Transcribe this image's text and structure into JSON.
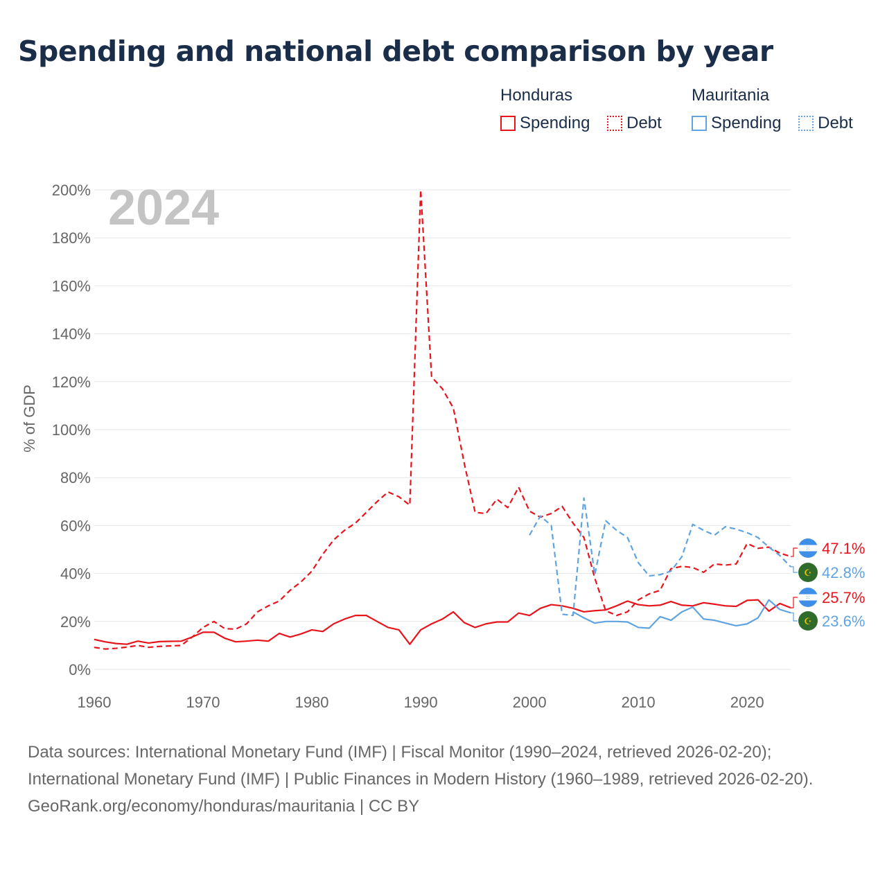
{
  "title": "Spending and national debt comparison by year",
  "legend": {
    "groups": [
      {
        "name": "Honduras",
        "color": "#e8141c",
        "items": [
          {
            "label": "Spending",
            "style": "solid"
          },
          {
            "label": "Debt",
            "style": "dotted"
          }
        ]
      },
      {
        "name": "Mauritania",
        "color": "#5fa3e0",
        "items": [
          {
            "label": "Spending",
            "style": "solid"
          },
          {
            "label": "Debt",
            "style": "dotted"
          }
        ]
      }
    ]
  },
  "chart_data": {
    "type": "line",
    "year_label": "2024",
    "ylabel": "% of GDP",
    "xlabel": "",
    "xlim": [
      1960,
      2024
    ],
    "ylim": [
      0,
      200
    ],
    "x_ticks": [
      1960,
      1970,
      1980,
      1990,
      2000,
      2010,
      2020
    ],
    "y_ticks": [
      0,
      20,
      40,
      60,
      80,
      100,
      120,
      140,
      160,
      180,
      200
    ],
    "y_tick_labels": [
      "0%",
      "20%",
      "40%",
      "60%",
      "80%",
      "100%",
      "120%",
      "140%",
      "160%",
      "180%",
      "200%"
    ],
    "grid": true,
    "series": [
      {
        "name": "Honduras Debt",
        "country": "Honduras",
        "measure": "Debt",
        "color": "#e8141c",
        "dash": "dashed",
        "end_label": "47.1%",
        "start_year": 1960,
        "values": [
          9.2,
          8.5,
          8.8,
          9.3,
          10.0,
          9.2,
          9.6,
          9.8,
          10.0,
          13.5,
          17.5,
          20.0,
          17.0,
          16.8,
          19.0,
          24.0,
          26.5,
          28.5,
          33.0,
          36.5,
          41.0,
          48.0,
          54.0,
          58.0,
          61.0,
          65.5,
          70.0,
          74.0,
          72.0,
          68.5,
          200.0,
          122.0,
          117.0,
          109.0,
          86.0,
          65.5,
          65.0,
          71.0,
          67.5,
          76.0,
          66.0,
          63.5,
          65.0,
          68.0,
          61.0,
          55.0,
          38.0,
          24.5,
          22.5,
          24.0,
          29.0,
          31.5,
          33.0,
          42.0,
          43.0,
          42.5,
          40.5,
          44.0,
          43.5,
          44.0,
          52.5,
          50.5,
          51.0,
          48.5,
          47.1
        ]
      },
      {
        "name": "Honduras Spending",
        "country": "Honduras",
        "measure": "Spending",
        "color": "#e8141c",
        "dash": "solid",
        "end_label": "25.7%",
        "start_year": 1960,
        "values": [
          12.5,
          11.5,
          10.8,
          10.5,
          11.8,
          11.0,
          11.6,
          11.7,
          11.8,
          13.5,
          15.5,
          15.5,
          13.0,
          11.5,
          11.8,
          12.2,
          11.8,
          15.0,
          13.5,
          14.8,
          16.5,
          15.8,
          19.0,
          21.0,
          22.5,
          22.5,
          20.0,
          17.5,
          16.5,
          10.5,
          16.5,
          19.0,
          21.0,
          24.0,
          19.5,
          17.5,
          19.0,
          19.8,
          19.8,
          23.5,
          22.5,
          25.5,
          27.0,
          26.5,
          25.5,
          24.0,
          24.5,
          24.8,
          26.5,
          28.5,
          27.0,
          26.5,
          26.8,
          28.3,
          26.8,
          26.5,
          27.8,
          27.2,
          26.5,
          26.3,
          28.8,
          29.0,
          24.3,
          27.5,
          25.7
        ]
      },
      {
        "name": "Mauritania Debt",
        "country": "Mauritania",
        "measure": "Debt",
        "color": "#5fa3e0",
        "dash": "dashed",
        "end_label": "42.8%",
        "start_year": 2000,
        "values": [
          56.0,
          64.0,
          60.0,
          23.0,
          22.5,
          71.5,
          39.5,
          62.0,
          58.0,
          55.0,
          44.5,
          39.0,
          39.5,
          41.0,
          47.0,
          60.5,
          58.0,
          56.0,
          59.5,
          58.5,
          57.0,
          55.0,
          51.0,
          47.5,
          42.8
        ]
      },
      {
        "name": "Mauritania Spending",
        "country": "Mauritania",
        "measure": "Spending",
        "color": "#5fa3e0",
        "dash": "solid",
        "end_label": "23.6%",
        "start_year": 2004,
        "values": [
          24.0,
          21.5,
          19.3,
          20.0,
          20.0,
          19.8,
          17.5,
          17.2,
          22.0,
          20.5,
          24.0,
          26.0,
          21.0,
          20.5,
          19.3,
          18.2,
          19.0,
          21.5,
          29.0,
          25.0,
          23.6
        ]
      }
    ]
  },
  "footer": {
    "sources": "Data sources: International Monetary Fund (IMF) | Fiscal Monitor (1990–2024, retrieved 2026-02-20); International Monetary Fund (IMF) | Public Finances in Modern History (1960–1989, retrieved 2026-02-20).",
    "credit": "GeoRank.org/economy/honduras/mauritania | CC BY"
  }
}
